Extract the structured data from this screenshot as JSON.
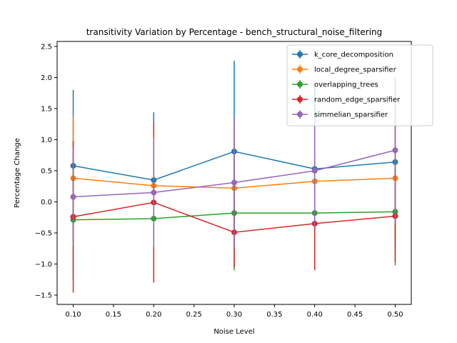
{
  "chart_data": {
    "type": "line",
    "title": "transitivity Variation by Percentage - bench_structural_noise_filtering",
    "xlabel": "Noise Level",
    "ylabel": "Percentage Change",
    "xlim": [
      0.08,
      0.52
    ],
    "ylim": [
      -1.65,
      2.58
    ],
    "x": [
      0.1,
      0.2,
      0.3,
      0.4,
      0.5
    ],
    "xticks": [
      "0.10",
      "0.15",
      "0.20",
      "0.25",
      "0.30",
      "0.35",
      "0.40",
      "0.45",
      "0.50"
    ],
    "xtick_values": [
      0.1,
      0.15,
      0.2,
      0.25,
      0.3,
      0.35,
      0.4,
      0.45,
      0.5
    ],
    "yticks": [
      "−1.5",
      "−1.0",
      "−0.5",
      "0.0",
      "0.5",
      "1.0",
      "1.5",
      "2.0",
      "2.5"
    ],
    "ytick_values": [
      -1.5,
      -1.0,
      -0.5,
      0.0,
      0.5,
      1.0,
      1.5,
      2.0,
      2.5
    ],
    "grid": false,
    "legend_position": "top-right",
    "series": [
      {
        "name": "k_core_decomposition",
        "color": "#1f77b4",
        "values": [
          0.58,
          0.35,
          0.81,
          0.53,
          0.64
        ],
        "err_low": [
          -0.64,
          -0.74,
          -0.66,
          -0.81,
          -0.72
        ],
        "err_high": [
          1.8,
          1.44,
          2.27,
          1.87,
          2.0
        ]
      },
      {
        "name": "local_degree_sparsifier",
        "color": "#ff7f0e",
        "values": [
          0.38,
          0.26,
          0.22,
          0.33,
          0.38
        ],
        "err_low": [
          -0.62,
          -0.74,
          -0.78,
          -0.67,
          -0.62
        ],
        "err_high": [
          1.38,
          1.26,
          1.22,
          1.33,
          1.38
        ]
      },
      {
        "name": "overlapping_trees",
        "color": "#2ca02c",
        "values": [
          -0.29,
          -0.27,
          -0.18,
          -0.18,
          -0.16
        ],
        "err_low": [
          -1.25,
          -1.2,
          -1.1,
          -1.08,
          -1.02
        ],
        "err_high": [
          0.67,
          0.66,
          0.74,
          0.72,
          0.7
        ]
      },
      {
        "name": "random_edge_sparsifier",
        "color": "#d62728",
        "values": [
          -0.24,
          -0.01,
          -0.49,
          -0.35,
          -0.23
        ],
        "err_low": [
          -1.46,
          -1.3,
          -1.05,
          -1.1,
          -0.97
        ],
        "err_high": [
          0.98,
          1.28,
          0.07,
          0.4,
          0.51
        ]
      },
      {
        "name": "simmelian_sparsifier",
        "color": "#9467bd",
        "values": [
          0.08,
          0.15,
          0.31,
          0.5,
          0.83
        ],
        "err_low": [
          -0.72,
          -0.73,
          -0.76,
          -0.4,
          -0.35
        ],
        "err_high": [
          0.88,
          1.03,
          1.38,
          1.4,
          2.01
        ]
      }
    ]
  }
}
